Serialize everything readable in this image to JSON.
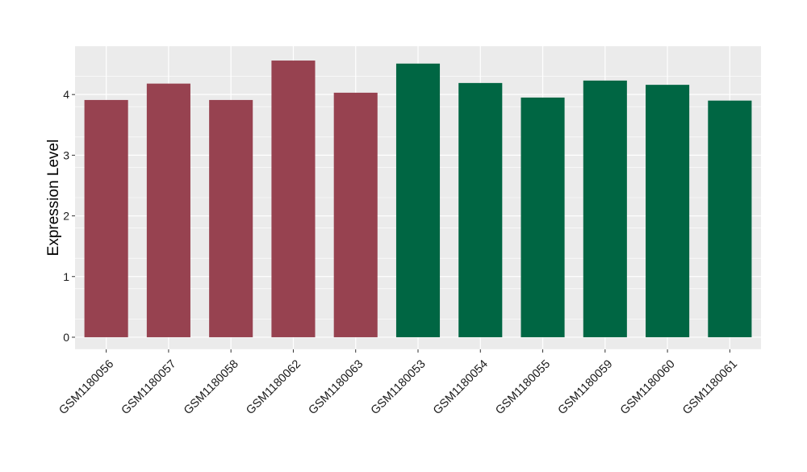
{
  "chart_data": {
    "type": "bar",
    "categories": [
      "GSM1180056",
      "GSM1180057",
      "GSM1180058",
      "GSM1180062",
      "GSM1180063",
      "GSM1180053",
      "GSM1180054",
      "GSM1180055",
      "GSM1180059",
      "GSM1180060",
      "GSM1180061"
    ],
    "values": [
      3.91,
      4.18,
      3.91,
      4.56,
      4.03,
      4.51,
      4.19,
      3.95,
      4.23,
      4.16,
      3.9
    ],
    "bar_colors": [
      "#974250",
      "#974250",
      "#974250",
      "#974250",
      "#974250",
      "#006643",
      "#006643",
      "#006643",
      "#006643",
      "#006643",
      "#006643"
    ],
    "title": "",
    "xlabel": "",
    "ylabel": "Expression Level",
    "ylim": [
      -0.2,
      4.8
    ],
    "yticks": [
      0,
      1,
      2,
      3,
      4
    ],
    "ytick_labels": [
      "0",
      "1",
      "2",
      "3",
      "4"
    ],
    "grid": true,
    "legend": "none",
    "panel_background": "#EBEBEB",
    "grid_color": "#FFFFFF"
  }
}
